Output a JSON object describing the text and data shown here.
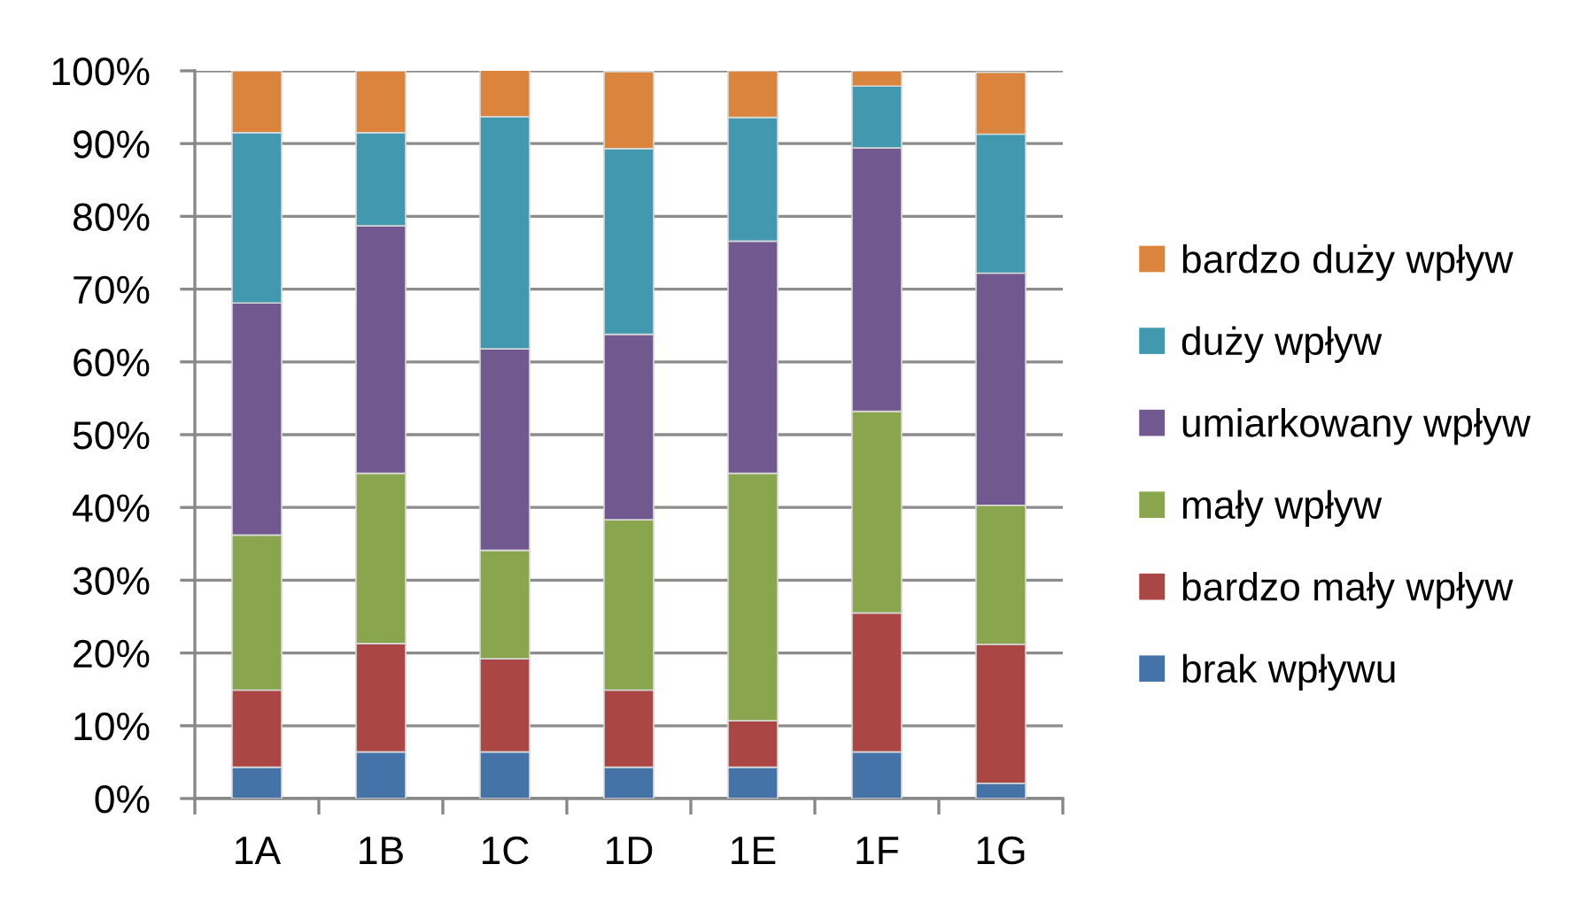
{
  "chart_data": {
    "type": "bar",
    "stacked": true,
    "categories": [
      "1A",
      "1B",
      "1C",
      "1D",
      "1E",
      "1F",
      "1G"
    ],
    "series": [
      {
        "name": "brak wpływu",
        "color": "#4572a7",
        "values": [
          4.3,
          6.4,
          6.4,
          4.3,
          4.3,
          6.4,
          2.1
        ]
      },
      {
        "name": "bardzo mały wpływ",
        "color": "#aa4643",
        "values": [
          10.6,
          14.9,
          12.8,
          10.6,
          6.4,
          19.1,
          19.1
        ]
      },
      {
        "name": "mały wpływ",
        "color": "#89a54e",
        "values": [
          21.3,
          23.4,
          14.9,
          23.4,
          34.0,
          27.7,
          19.1
        ]
      },
      {
        "name": "umiarkowany wpływ",
        "color": "#71588f",
        "values": [
          31.9,
          34.0,
          27.7,
          25.5,
          31.9,
          36.2,
          31.9
        ]
      },
      {
        "name": "duży wpływ",
        "color": "#4198af",
        "values": [
          23.4,
          12.8,
          31.9,
          25.5,
          17.0,
          8.5,
          19.1
        ]
      },
      {
        "name": "bardzo duży wpływ",
        "color": "#db843d",
        "values": [
          8.5,
          8.5,
          6.4,
          10.6,
          6.4,
          2.1,
          8.5
        ]
      }
    ],
    "ylim": [
      0,
      100
    ],
    "yticks": [
      {
        "value": 0,
        "label": "0%"
      },
      {
        "value": 10,
        "label": "10%"
      },
      {
        "value": 20,
        "label": "20%"
      },
      {
        "value": 30,
        "label": "30%"
      },
      {
        "value": 40,
        "label": "40%"
      },
      {
        "value": 50,
        "label": "50%"
      },
      {
        "value": 60,
        "label": "60%"
      },
      {
        "value": 70,
        "label": "70%"
      },
      {
        "value": 80,
        "label": "80%"
      },
      {
        "value": 90,
        "label": "90%"
      },
      {
        "value": 100,
        "label": "100%"
      }
    ],
    "grid": "y",
    "legend": "right"
  }
}
